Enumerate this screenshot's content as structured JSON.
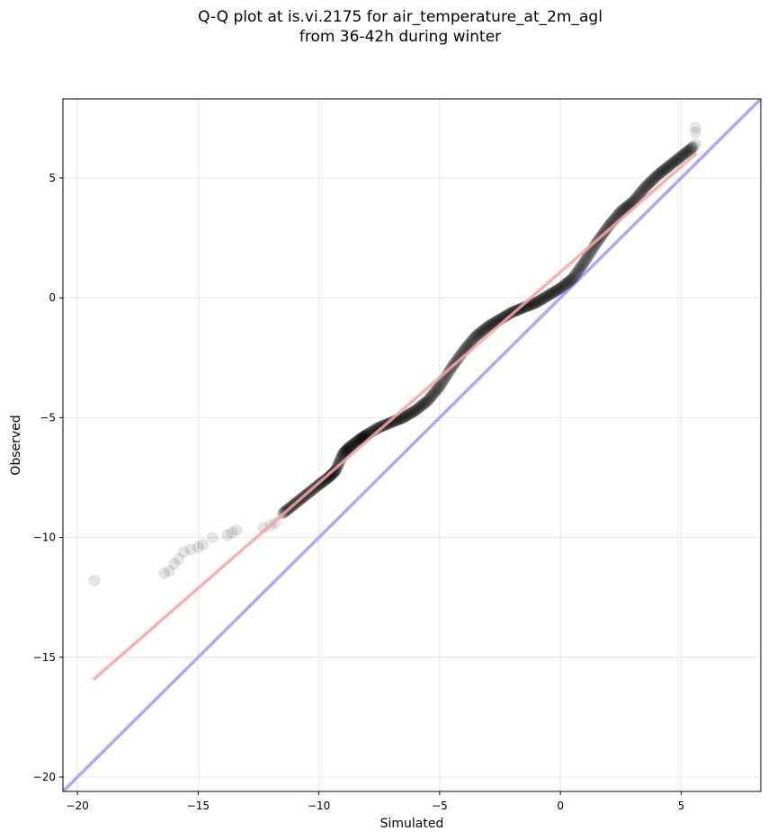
{
  "chart_data": {
    "type": "scatter",
    "title": "Q-Q plot at is.vi.2175 for air_temperature_at_2m_agl",
    "subtitle": "from 36-42h during winter",
    "xlabel": "Simulated",
    "ylabel": "Observed",
    "xlim": [
      -20.6,
      8.3
    ],
    "ylim": [
      -20.6,
      8.3
    ],
    "xticks": [
      -20,
      -15,
      -10,
      -5,
      0,
      5
    ],
    "yticks": [
      -20,
      -15,
      -10,
      -5,
      0,
      5
    ],
    "xtick_labels": [
      "−20",
      "−15",
      "−10",
      "−5",
      "0",
      "5"
    ],
    "ytick_labels": [
      "−20",
      "−15",
      "−10",
      "−5",
      "0",
      "5"
    ],
    "grid": true,
    "fit_line": {
      "x": [
        -19.3,
        5.6
      ],
      "y": [
        -15.9,
        6.0
      ],
      "color": "#f4a5a5"
    },
    "identity_line": {
      "x": [
        -20.6,
        8.3
      ],
      "y": [
        -20.6,
        8.3
      ],
      "color": "#aaaaf6"
    },
    "point_color": "#000000",
    "outlier_points": {
      "x": [
        -19.3,
        -16.4,
        -16.2,
        -16.0,
        -15.8,
        -15.6,
        -15.3,
        -15.0,
        -14.8,
        -14.4,
        -13.8,
        -13.6,
        -13.4,
        -12.3,
        -12.0,
        -11.8
      ],
      "y": [
        -11.8,
        -11.5,
        -11.4,
        -11.1,
        -10.9,
        -10.6,
        -10.5,
        -10.4,
        -10.3,
        -10.0,
        -9.9,
        -9.8,
        -9.7,
        -9.6,
        -9.5,
        -9.4
      ]
    },
    "quantile_curve": {
      "x": [
        -11.5,
        -11.0,
        -10.5,
        -10.0,
        -9.6,
        -9.3,
        -9.0,
        -8.7,
        -8.3,
        -8.0,
        -7.5,
        -7.0,
        -6.5,
        -6.0,
        -5.5,
        -5.0,
        -4.5,
        -4.0,
        -3.5,
        -3.0,
        -2.5,
        -2.0,
        -1.5,
        -1.0,
        -0.5,
        0.0,
        0.5,
        1.0,
        1.5,
        2.0,
        2.5,
        3.0,
        3.5,
        4.0,
        4.5,
        5.0,
        5.5
      ],
      "y": [
        -9.0,
        -8.6,
        -8.2,
        -7.8,
        -7.5,
        -7.2,
        -6.5,
        -6.2,
        -5.9,
        -5.7,
        -5.4,
        -5.2,
        -5.0,
        -4.7,
        -4.3,
        -3.7,
        -2.9,
        -2.2,
        -1.6,
        -1.2,
        -0.9,
        -0.6,
        -0.4,
        -0.2,
        0.1,
        0.4,
        0.8,
        1.5,
        2.3,
        3.0,
        3.6,
        4.0,
        4.6,
        5.1,
        5.5,
        5.9,
        6.3
      ]
    },
    "top_points": {
      "x": [
        5.6,
        5.6,
        5.6
      ],
      "y": [
        6.4,
        6.9,
        7.1
      ]
    }
  }
}
